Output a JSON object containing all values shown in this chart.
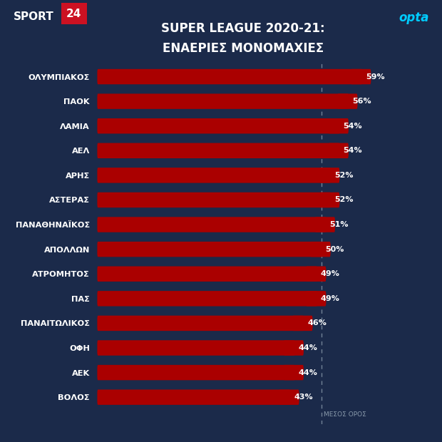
{
  "title_line1": "SUPER LEAGUE 2020-21:",
  "title_line2": "ΕΝΑΕΡΙΕΣ ΜΟΝΟΜΑΧΙΕΣ",
  "teams": [
    "ΟΛΥΜΠΙΑΚΟΣ",
    "ΠΑΟΚ",
    "ΛΑΜΙΑ",
    "ΑΕΛ",
    "ΑΡΗΣ",
    "ΑΣΤΕΡΑΣ",
    "ΠΑΝΑΘΗΝΑΪΚΟΣ",
    "ΑΠΟΛΛΩΝ",
    "ΑΤΡΟΜΗΤΟΣ",
    "ΠΑΣ",
    "ΠΑΝΑΙΤΩΛΙΚΟΣ",
    "ΟΦΗ",
    "ΑΕΚ",
    "ΒΟΛΟΣ"
  ],
  "values": [
    59,
    56,
    54,
    54,
    52,
    52,
    51,
    50,
    49,
    49,
    46,
    44,
    44,
    43
  ],
  "bar_color": "#aa0000",
  "bg_color": "#1b2a4a",
  "text_color": "#ffffff",
  "title_color": "#ffffff",
  "label_color": "#ffffff",
  "avg_line_value": 50,
  "avg_label": "ΜΕΣΟΣ ΟΡΟΣ",
  "avg_line_color": "#8899aa",
  "bar_height": 0.62,
  "xlim_max": 65,
  "xlim_min": 0,
  "sport24_bg": "#cc1122",
  "opta_color": "#00ccff"
}
